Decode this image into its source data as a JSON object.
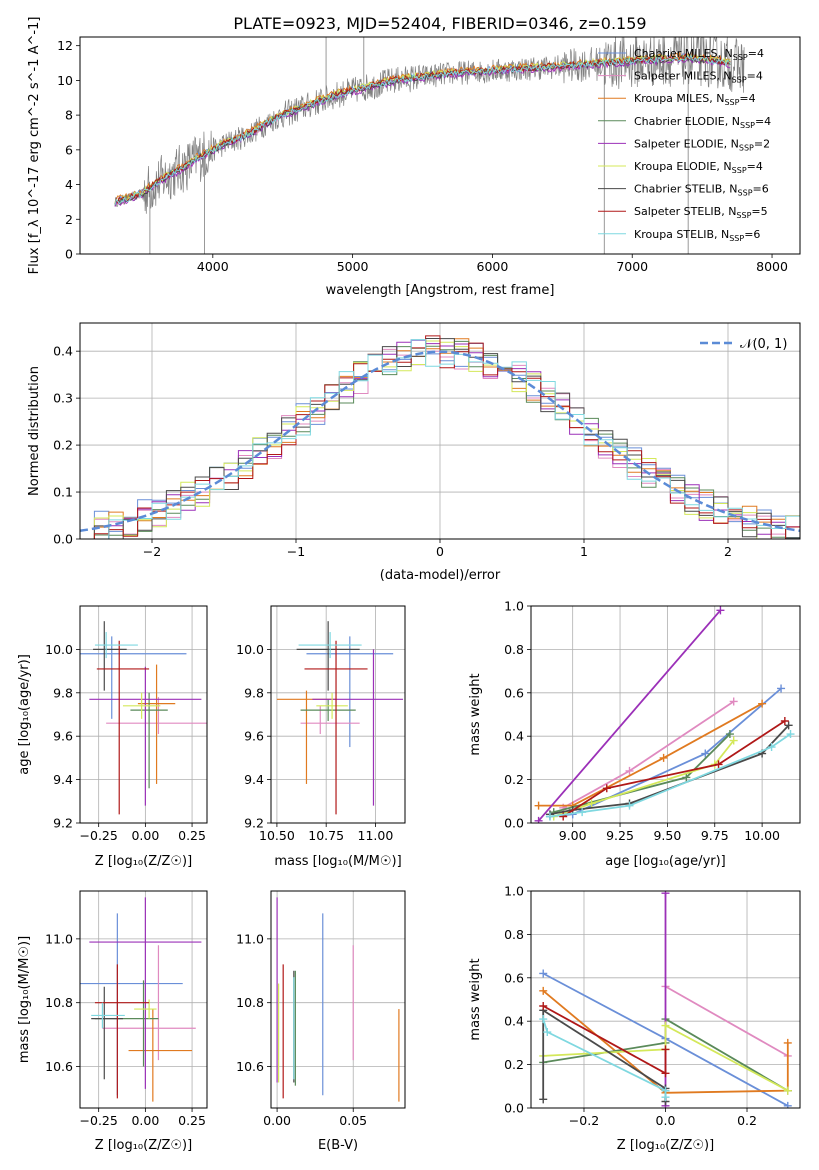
{
  "figure_title": "PLATE=0923, MJD=52404, FIBERID=0346, z=0.159",
  "colors": {
    "spectrum": "#808080",
    "Chabrier MILES": "#6a8fd8",
    "Salpeter MILES": "#e08ac0",
    "Kroupa MILES": "#e07a20",
    "Chabrier ELODIE": "#5a8a5a",
    "Salpeter ELODIE": "#9b30b8",
    "Kroupa ELODIE": "#d4e85a",
    "Chabrier STELIB": "#4a4a4a",
    "Salpeter STELIB": "#b01818",
    "Kroupa STELIB": "#7fd8e0",
    "normal": "#5b8bd6"
  },
  "chart_data": [
    {
      "id": "spectrum",
      "type": "line",
      "xlabel": "wavelength [Angstrom, rest frame]",
      "ylabel": "Flux [f_λ 10^-17 erg cm^-2 s^-1 A^-1]",
      "xlim": [
        3050,
        8200
      ],
      "ylim": [
        0,
        12.5
      ],
      "xticks": [
        "4000",
        "5000",
        "6000",
        "7000",
        "8000"
      ],
      "yticks": [
        "0",
        "2",
        "4",
        "6",
        "8",
        "10",
        "12"
      ],
      "legend_position": "top-right",
      "legend": [
        {
          "model": "Chabrier MILES",
          "label": "Chabrier MILES, N",
          "sub": "SSP",
          "tail": "=4"
        },
        {
          "model": "Salpeter MILES",
          "label": "Salpeter MILES, N",
          "sub": "SSP",
          "tail": "=4"
        },
        {
          "model": "Kroupa MILES",
          "label": "Kroupa MILES, N",
          "sub": "SSP",
          "tail": "=4"
        },
        {
          "model": "Chabrier ELODIE",
          "label": "Chabrier ELODIE, N",
          "sub": "SSP",
          "tail": "=4"
        },
        {
          "model": "Salpeter ELODIE",
          "label": "Salpeter ELODIE, N",
          "sub": "SSP",
          "tail": "=2"
        },
        {
          "model": "Kroupa ELODIE",
          "label": "Kroupa ELODIE, N",
          "sub": "SSP",
          "tail": "=4"
        },
        {
          "model": "Chabrier STELIB",
          "label": "Chabrier STELIB, N",
          "sub": "SSP",
          "tail": "=6"
        },
        {
          "model": "Salpeter STELIB",
          "label": "Salpeter STELIB, N",
          "sub": "SSP",
          "tail": "=5"
        },
        {
          "model": "Kroupa STELIB",
          "label": "Kroupa STELIB, N",
          "sub": "SSP",
          "tail": "=6"
        }
      ],
      "continuum_x": [
        3300,
        3400,
        3500,
        3600,
        3700,
        3800,
        3900,
        4000,
        4100,
        4200,
        4300,
        4400,
        4500,
        4700,
        4900,
        5100,
        5300,
        5500,
        5700,
        5900,
        6100,
        6300,
        6500,
        6800,
        7000,
        7200,
        7400,
        7600,
        7800
      ],
      "continuum_y": [
        3.0,
        3.2,
        3.5,
        4.1,
        4.6,
        5.0,
        5.6,
        6.0,
        6.4,
        6.7,
        7.1,
        7.6,
        8.0,
        8.6,
        9.2,
        9.6,
        10.0,
        10.2,
        10.4,
        10.5,
        10.6,
        10.7,
        10.8,
        11.0,
        11.1,
        11.2,
        11.3,
        11.1,
        10.8
      ],
      "spikes": [
        {
          "x": 3550,
          "y": 0
        },
        {
          "x": 3940,
          "y": 0
        },
        {
          "x": 4810,
          "y": 12.5
        },
        {
          "x": 5080,
          "y": 12.5
        },
        {
          "x": 6800,
          "y": 0
        },
        {
          "x": 7400,
          "y": 0
        }
      ]
    },
    {
      "id": "residuals",
      "type": "histogram",
      "xlabel": "(data-model)/error",
      "ylabel": "Normed distribution",
      "xlim": [
        -2.5,
        2.5
      ],
      "ylim": [
        0,
        0.46
      ],
      "xticks": [
        "−2",
        "−1",
        "0",
        "1",
        "2"
      ],
      "yticks": [
        "0.0",
        "0.1",
        "0.2",
        "0.3",
        "0.4"
      ],
      "bin_width": 0.1,
      "legend_label": "𝒩(0, 1)",
      "models": [
        "Chabrier MILES",
        "Salpeter MILES",
        "Kroupa MILES",
        "Chabrier ELODIE",
        "Salpeter ELODIE",
        "Kroupa ELODIE",
        "Chabrier STELIB",
        "Salpeter STELIB",
        "Kroupa STELIB"
      ]
    },
    {
      "id": "age-vs-Z",
      "type": "errorbar",
      "xlabel": "Z [log₁₀(Z/Z☉)]",
      "ylabel": "age  [log₁₀(age/yr)]",
      "xlim": [
        -0.35,
        0.33
      ],
      "ylim": [
        9.2,
        10.2
      ],
      "xticks": [
        "−0.25",
        "0.00",
        "0.25"
      ],
      "yticks": [
        "9.2",
        "9.4",
        "9.6",
        "9.8",
        "10.0"
      ],
      "points": [
        {
          "model": "Chabrier MILES",
          "x": -0.18,
          "y": 9.98,
          "xerr": [
            0.4,
            0.4
          ],
          "yerr": [
            0.3,
            0.08
          ]
        },
        {
          "model": "Salpeter MILES",
          "x": 0.07,
          "y": 9.66,
          "xerr": [
            0.28,
            0.28
          ],
          "yerr": [
            0.05,
            0.12
          ]
        },
        {
          "model": "Kroupa MILES",
          "x": 0.06,
          "y": 9.75,
          "xerr": [
            0.1,
            0.1
          ],
          "yerr": [
            0.37,
            0.18
          ]
        },
        {
          "model": "Chabrier ELODIE",
          "x": 0.02,
          "y": 9.72,
          "xerr": [
            0.1,
            0.1
          ],
          "yerr": [
            0.36,
            0.08
          ]
        },
        {
          "model": "Salpeter ELODIE",
          "x": 0.0,
          "y": 9.77,
          "xerr": [
            0.3,
            0.3
          ],
          "yerr": [
            0.49,
            0.15
          ]
        },
        {
          "model": "Kroupa ELODIE",
          "x": -0.02,
          "y": 9.74,
          "xerr": [
            0.1,
            0.1
          ],
          "yerr": [
            0.06,
            0.06
          ]
        },
        {
          "model": "Chabrier STELIB",
          "x": -0.22,
          "y": 10.0,
          "xerr": [
            0.06,
            0.12
          ],
          "yerr": [
            0.19,
            0.13
          ]
        },
        {
          "model": "Salpeter STELIB",
          "x": -0.14,
          "y": 9.91,
          "xerr": [
            0.12,
            0.16
          ],
          "yerr": [
            0.67,
            0.13
          ]
        },
        {
          "model": "Kroupa STELIB",
          "x": -0.21,
          "y": 10.02,
          "xerr": [
            0.06,
            0.17
          ],
          "yerr": [
            0.06,
            0.06
          ]
        }
      ]
    },
    {
      "id": "age-vs-mass",
      "type": "errorbar",
      "xlabel": "mass [log₁₀(M/M☉)]",
      "ylabel": "",
      "xlim": [
        10.47,
        11.15
      ],
      "ylim": [
        9.2,
        10.2
      ],
      "xticks": [
        "10.50",
        "10.75",
        "11.00"
      ],
      "yticks": [
        "9.2",
        "9.4",
        "9.6",
        "9.8",
        "10.0"
      ],
      "points": [
        {
          "model": "Chabrier MILES",
          "x": 10.87,
          "y": 9.98,
          "xerr": [
            0.22,
            0.22
          ],
          "yerr": [
            0.43,
            0.08
          ]
        },
        {
          "model": "Salpeter MILES",
          "x": 10.72,
          "y": 9.66,
          "xerr": [
            0.1,
            0.2
          ],
          "yerr": [
            0.05,
            0.08
          ]
        },
        {
          "model": "Kroupa MILES",
          "x": 10.65,
          "y": 9.77,
          "xerr": [
            0.15,
            0.15
          ],
          "yerr": [
            0.39,
            0.04
          ]
        },
        {
          "model": "Chabrier ELODIE",
          "x": 10.76,
          "y": 9.72,
          "xerr": [
            0.14,
            0.14
          ],
          "yerr": [
            0.05,
            0.05
          ]
        },
        {
          "model": "Salpeter ELODIE",
          "x": 10.99,
          "y": 9.77,
          "xerr": [
            0.31,
            0.15
          ],
          "yerr": [
            0.49,
            0.23
          ]
        },
        {
          "model": "Kroupa ELODIE",
          "x": 10.78,
          "y": 9.74,
          "xerr": [
            0.08,
            0.08
          ],
          "yerr": [
            0.06,
            0.06
          ]
        },
        {
          "model": "Chabrier STELIB",
          "x": 10.76,
          "y": 10.0,
          "xerr": [
            0.16,
            0.16
          ],
          "yerr": [
            0.19,
            0.13
          ]
        },
        {
          "model": "Salpeter STELIB",
          "x": 10.8,
          "y": 9.91,
          "xerr": [
            0.16,
            0.16
          ],
          "yerr": [
            0.67,
            0.13
          ]
        },
        {
          "model": "Kroupa STELIB",
          "x": 10.77,
          "y": 10.02,
          "xerr": [
            0.16,
            0.16
          ],
          "yerr": [
            0.06,
            0.06
          ]
        }
      ]
    },
    {
      "id": "mass-weight-vs-age",
      "type": "line",
      "xlabel": "age  [log₁₀(age/yr)]",
      "ylabel": "mass weight",
      "xlim": [
        8.78,
        10.2
      ],
      "ylim": [
        0,
        1.0
      ],
      "xticks": [
        "9.00",
        "9.25",
        "9.50",
        "9.75",
        "10.00"
      ],
      "yticks": [
        "0.0",
        "0.2",
        "0.4",
        "0.6",
        "0.8",
        "1.0"
      ],
      "series": [
        {
          "model": "Chabrier MILES",
          "x": [
            8.88,
            9.0,
            9.7,
            10.1
          ],
          "y": [
            0.03,
            0.04,
            0.32,
            0.62
          ]
        },
        {
          "model": "Salpeter MILES",
          "x": [
            8.95,
            9.3,
            9.85
          ],
          "y": [
            0.07,
            0.24,
            0.56
          ]
        },
        {
          "model": "Kroupa MILES",
          "x": [
            8.82,
            9.0,
            9.48,
            10.0
          ],
          "y": [
            0.08,
            0.08,
            0.3,
            0.55
          ]
        },
        {
          "model": "Chabrier ELODIE",
          "x": [
            8.9,
            9.6,
            9.83
          ],
          "y": [
            0.05,
            0.21,
            0.41
          ]
        },
        {
          "model": "Salpeter ELODIE",
          "x": [
            8.82,
            9.78
          ],
          "y": [
            0.01,
            0.98
          ]
        },
        {
          "model": "Kroupa ELODIE",
          "x": [
            8.9,
            9.1,
            9.75,
            9.85
          ],
          "y": [
            0.03,
            0.09,
            0.27,
            0.38
          ]
        },
        {
          "model": "Chabrier STELIB",
          "x": [
            8.88,
            9.0,
            9.3,
            10.0,
            10.14
          ],
          "y": [
            0.04,
            0.06,
            0.09,
            0.32,
            0.45
          ]
        },
        {
          "model": "Salpeter STELIB",
          "x": [
            8.95,
            9.18,
            9.77,
            10.12
          ],
          "y": [
            0.03,
            0.16,
            0.27,
            0.47
          ]
        },
        {
          "model": "Kroupa STELIB",
          "x": [
            8.88,
            9.05,
            9.3,
            10.05,
            10.15
          ],
          "y": [
            0.03,
            0.05,
            0.08,
            0.35,
            0.41
          ]
        }
      ]
    },
    {
      "id": "mass-vs-Z",
      "type": "errorbar",
      "xlabel": "Z [log₁₀(Z/Z☉)]",
      "ylabel": "mass [log₁₀(M/M☉)]",
      "xlim": [
        -0.35,
        0.33
      ],
      "ylim": [
        10.47,
        11.15
      ],
      "xticks": [
        "−0.25",
        "0.00",
        "0.25"
      ],
      "yticks": [
        "10.6",
        "10.8",
        "11.0"
      ],
      "points": [
        {
          "model": "Chabrier MILES",
          "x": -0.15,
          "y": 10.86,
          "xerr": [
            0.2,
            0.35
          ],
          "yerr": [
            0.35,
            0.22
          ]
        },
        {
          "model": "Salpeter MILES",
          "x": 0.07,
          "y": 10.72,
          "xerr": [
            0.3,
            0.2
          ],
          "yerr": [
            0.1,
            0.26
          ]
        },
        {
          "model": "Kroupa MILES",
          "x": 0.04,
          "y": 10.65,
          "xerr": [
            0.13,
            0.21
          ],
          "yerr": [
            0.16,
            0.13
          ]
        },
        {
          "model": "Chabrier ELODIE",
          "x": -0.01,
          "y": 10.75,
          "xerr": [
            0.26,
            0.08
          ],
          "yerr": [
            0.15,
            0.12
          ]
        },
        {
          "model": "Salpeter ELODIE",
          "x": 0.0,
          "y": 10.99,
          "xerr": [
            0.3,
            0.3
          ],
          "yerr": [
            0.46,
            0.14
          ]
        },
        {
          "model": "Kroupa ELODIE",
          "x": 0.02,
          "y": 10.78,
          "xerr": [
            0.08,
            0.04
          ],
          "yerr": [
            0.03,
            0.03
          ]
        },
        {
          "model": "Chabrier STELIB",
          "x": -0.22,
          "y": 10.75,
          "xerr": [
            0.07,
            0.1
          ],
          "yerr": [
            0.19,
            0.1
          ]
        },
        {
          "model": "Salpeter STELIB",
          "x": -0.15,
          "y": 10.8,
          "xerr": [
            0.12,
            0.17
          ],
          "yerr": [
            0.3,
            0.12
          ]
        },
        {
          "model": "Kroupa STELIB",
          "x": -0.23,
          "y": 10.76,
          "xerr": [
            0.06,
            0.12
          ],
          "yerr": [
            0.04,
            0.04
          ]
        }
      ]
    },
    {
      "id": "mass-vs-EBV",
      "type": "errorbar",
      "xlabel": "E(B-V)",
      "ylabel": "",
      "xlim": [
        -0.004,
        0.084
      ],
      "ylim": [
        10.47,
        11.15
      ],
      "xticks": [
        "0.00",
        "0.05"
      ],
      "yticks": [
        "10.6",
        "10.8",
        "11.0"
      ],
      "points": [
        {
          "model": "Chabrier MILES",
          "x": 0.03,
          "y": 10.79,
          "xerr": [
            0,
            0
          ],
          "yerr": [
            0.28,
            0.29
          ]
        },
        {
          "model": "Salpeter MILES",
          "x": 0.05,
          "y": 10.8,
          "xerr": [
            0,
            0
          ],
          "yerr": [
            0.18,
            0.18
          ]
        },
        {
          "model": "Kroupa MILES",
          "x": 0.08,
          "y": 10.64,
          "xerr": [
            0,
            0
          ],
          "yerr": [
            0.15,
            0.14
          ]
        },
        {
          "model": "Chabrier ELODIE",
          "x": 0.012,
          "y": 10.75,
          "xerr": [
            0,
            0
          ],
          "yerr": [
            0.21,
            0.15
          ]
        },
        {
          "model": "Salpeter ELODIE",
          "x": 0.0,
          "y": 10.85,
          "xerr": [
            0,
            0
          ],
          "yerr": [
            0.3,
            0.28
          ]
        },
        {
          "model": "Kroupa ELODIE",
          "x": 0.001,
          "y": 10.77,
          "xerr": [
            0,
            0
          ],
          "yerr": [
            0.22,
            0.09
          ]
        },
        {
          "model": "Chabrier STELIB",
          "x": 0.011,
          "y": 10.75,
          "xerr": [
            0,
            0
          ],
          "yerr": [
            0.2,
            0.15
          ]
        },
        {
          "model": "Salpeter STELIB",
          "x": 0.004,
          "y": 10.7,
          "xerr": [
            0,
            0
          ],
          "yerr": [
            0.2,
            0.22
          ]
        },
        {
          "model": "Kroupa STELIB",
          "x": 0.011,
          "y": 10.74,
          "xerr": [
            0,
            0
          ],
          "yerr": [
            0.18,
            0.14
          ]
        }
      ]
    },
    {
      "id": "mass-weight-vs-Z",
      "type": "line",
      "xlabel": "Z [log₁₀(Z/Z☉)]",
      "ylabel": "mass weight",
      "xlim": [
        -0.33,
        0.33
      ],
      "ylim": [
        0,
        1.0
      ],
      "xticks": [
        "−0.2",
        "0.0",
        "0.2"
      ],
      "yticks": [
        "0.0",
        "0.2",
        "0.4",
        "0.6",
        "0.8",
        "1.0"
      ],
      "series": [
        {
          "model": "Chabrier MILES",
          "x": [
            -0.3,
            0.0,
            0.3
          ],
          "y": [
            0.62,
            0.32,
            0.01
          ]
        },
        {
          "model": "Salpeter MILES",
          "x": [
            0.0,
            0.3
          ],
          "y": [
            0.56,
            0.24
          ]
        },
        {
          "model": "Kroupa MILES",
          "x": [
            -0.3,
            0.0,
            0.3,
            0.3
          ],
          "y": [
            0.54,
            0.07,
            0.08,
            0.3
          ]
        },
        {
          "model": "Chabrier ELODIE",
          "x": [
            -0.3,
            0.0,
            0.0,
            0.3
          ],
          "y": [
            0.21,
            0.3,
            0.41,
            0.08
          ]
        },
        {
          "model": "Salpeter ELODIE",
          "x": [
            0.0,
            0.0
          ],
          "y": [
            0.01,
            0.99
          ]
        },
        {
          "model": "Kroupa ELODIE",
          "x": [
            -0.3,
            0.0,
            0.0,
            0.3
          ],
          "y": [
            0.24,
            0.27,
            0.38,
            0.08
          ]
        },
        {
          "model": "Chabrier STELIB",
          "x": [
            -0.3,
            -0.3,
            0.0,
            0.0
          ],
          "y": [
            0.04,
            0.45,
            0.09,
            0.03
          ]
        },
        {
          "model": "Salpeter STELIB",
          "x": [
            -0.3,
            0.0,
            0.0
          ],
          "y": [
            0.47,
            0.16,
            0.27
          ]
        },
        {
          "model": "Kroupa STELIB",
          "x": [
            -0.3,
            -0.29,
            0.0,
            0.0
          ],
          "y": [
            0.41,
            0.35,
            0.08,
            0.05
          ]
        }
      ]
    }
  ]
}
